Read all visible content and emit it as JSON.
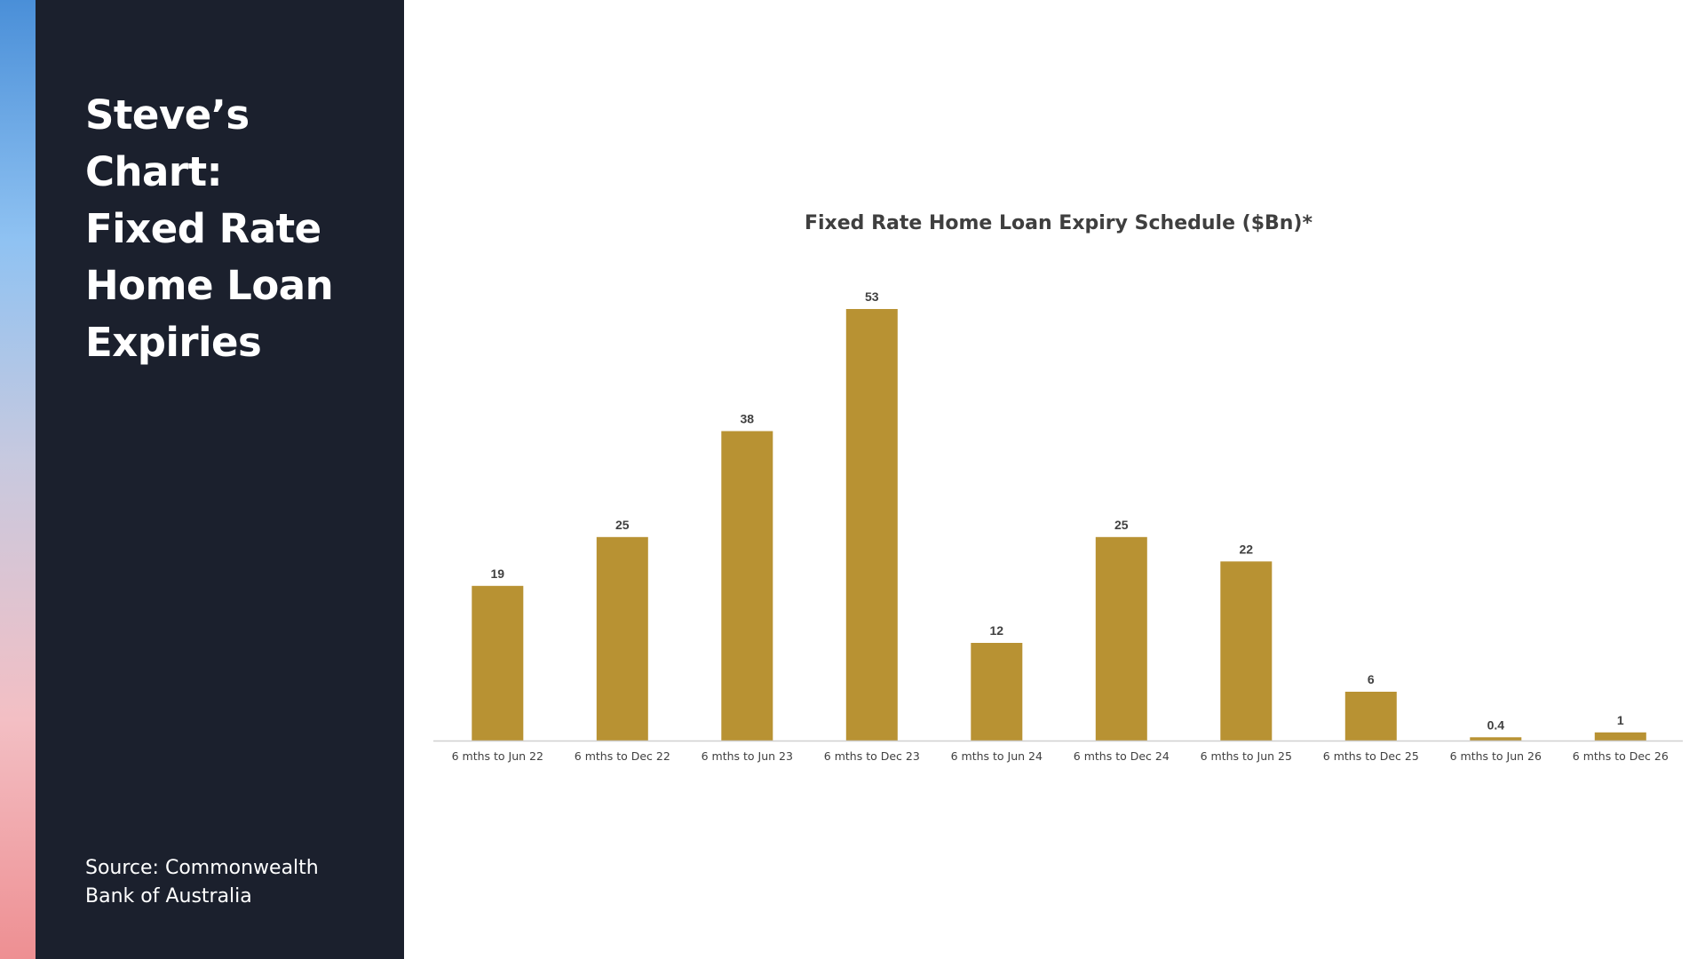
{
  "sidebar": {
    "title_lines": [
      "Steve’s Chart:",
      "Fixed Rate",
      "Home Loan",
      "Expiries"
    ],
    "source_lines": [
      "Source: Commonwealth",
      "Bank of Australia"
    ]
  },
  "colors": {
    "bar": "#b89233",
    "sidebar_bg": "#1b202d",
    "axis": "#d0d0d0"
  },
  "chart_data": {
    "type": "bar",
    "title": "Fixed Rate Home Loan Expiry Schedule ($Bn)*",
    "categories": [
      "6 mths to Jun 22",
      "6 mths to Dec 22",
      "6 mths to Jun 23",
      "6 mths to Dec 23",
      "6 mths to Jun 24",
      "6 mths to Dec 24",
      "6 mths to Jun 25",
      "6 mths to Dec 25",
      "6 mths to Jun 26",
      "6 mths to Dec 26"
    ],
    "values": [
      19,
      25,
      38,
      53,
      12,
      25,
      22,
      6,
      0.4,
      1
    ],
    "data_labels": [
      "19",
      "25",
      "38",
      "53",
      "12",
      "25",
      "22",
      "6",
      "0.4",
      "1"
    ],
    "xlabel": "",
    "ylabel": "",
    "ylim": [
      0,
      53
    ],
    "grid": false,
    "legend": "none"
  }
}
